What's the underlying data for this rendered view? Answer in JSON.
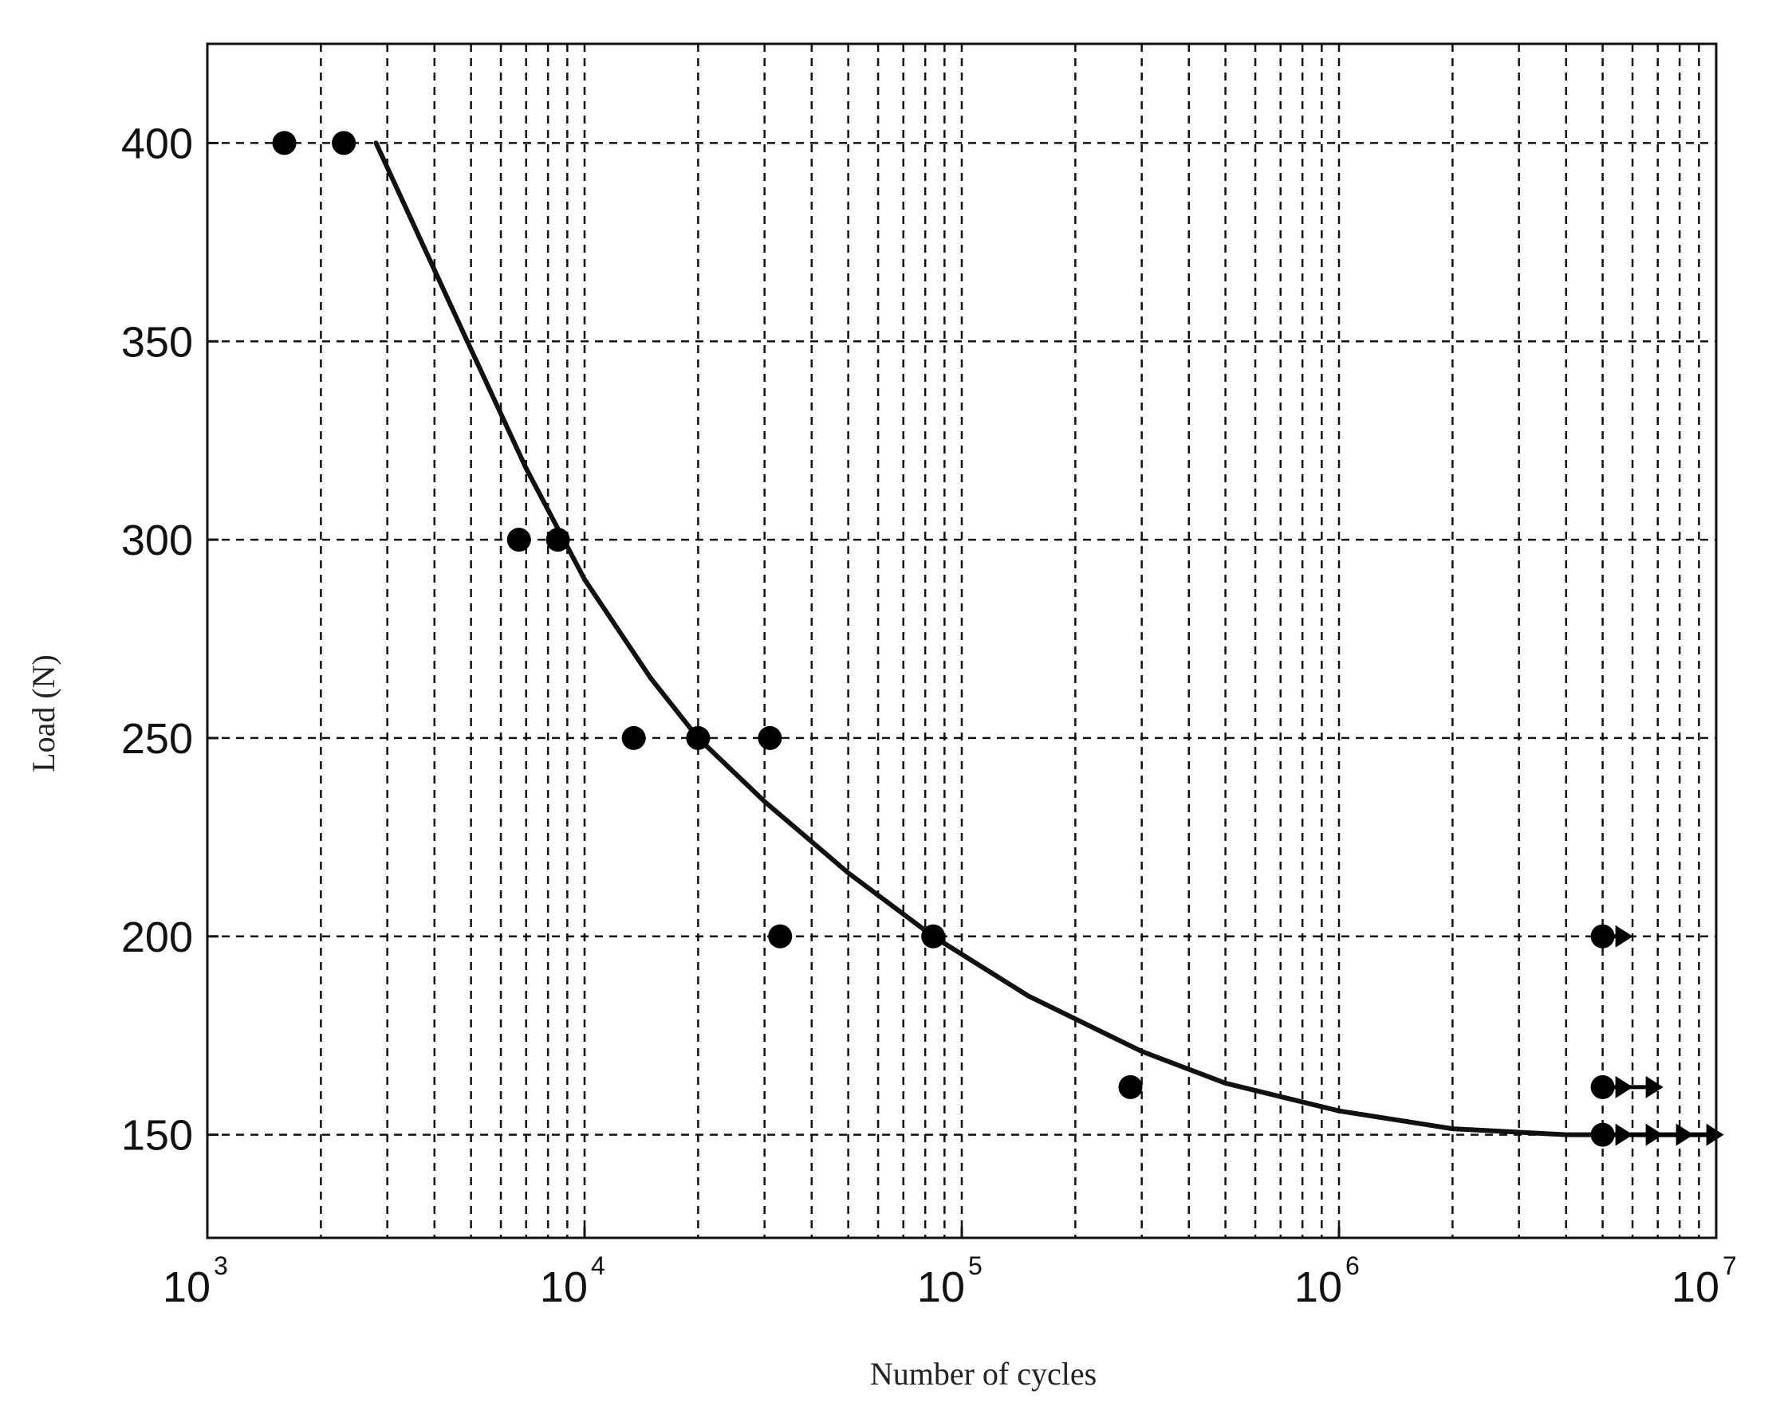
{
  "chart_data": {
    "type": "scatter",
    "xlabel": "Number of cycles",
    "ylabel": "Load (N)",
    "xscale": "log",
    "xlim": [
      1000,
      10000000
    ],
    "ylim": [
      124,
      425
    ],
    "grid": true,
    "x_ticks": [
      {
        "value": 1000,
        "base": "10",
        "exp": "3"
      },
      {
        "value": 10000,
        "base": "10",
        "exp": "4"
      },
      {
        "value": 100000,
        "base": "10",
        "exp": "5"
      },
      {
        "value": 1000000,
        "base": "10",
        "exp": "6"
      },
      {
        "value": 10000000,
        "base": "10",
        "exp": "7"
      }
    ],
    "y_ticks": [
      {
        "value": 150,
        "label": "150"
      },
      {
        "value": 200,
        "label": "200"
      },
      {
        "value": 250,
        "label": "250"
      },
      {
        "value": 300,
        "label": "300"
      },
      {
        "value": 350,
        "label": "350"
      },
      {
        "value": 400,
        "label": "400"
      }
    ],
    "series": [
      {
        "points": [
          {
            "x": 1600,
            "y": 400
          },
          {
            "x": 2300,
            "y": 400
          },
          {
            "x": 6700,
            "y": 300
          },
          {
            "x": 8500,
            "y": 300
          },
          {
            "x": 13500,
            "y": 250
          },
          {
            "x": 20000,
            "y": 250
          },
          {
            "x": 31000,
            "y": 250
          },
          {
            "x": 33000,
            "y": 200
          },
          {
            "x": 84000,
            "y": 200
          },
          {
            "x": 280000,
            "y": 162
          },
          {
            "x": 5000000,
            "y": 200
          },
          {
            "x": 5000000,
            "y": 162
          },
          {
            "x": 5000000,
            "y": 150
          }
        ]
      }
    ],
    "runouts": [
      {
        "x": 5000000,
        "y": 200,
        "arrows": 1
      },
      {
        "x": 5000000,
        "y": 162,
        "arrows": 2
      },
      {
        "x": 5000000,
        "y": 150,
        "arrows": 4
      }
    ],
    "fit_curve": {
      "points": [
        {
          "x": 2800,
          "y": 400
        },
        {
          "x": 4000,
          "y": 368
        },
        {
          "x": 5000,
          "y": 348
        },
        {
          "x": 7000,
          "y": 318
        },
        {
          "x": 10000,
          "y": 290
        },
        {
          "x": 15000,
          "y": 265
        },
        {
          "x": 20000,
          "y": 250
        },
        {
          "x": 30000,
          "y": 234
        },
        {
          "x": 50000,
          "y": 216
        },
        {
          "x": 84000,
          "y": 200
        },
        {
          "x": 150000,
          "y": 185
        },
        {
          "x": 300000,
          "y": 171
        },
        {
          "x": 500000,
          "y": 163
        },
        {
          "x": 1000000,
          "y": 156
        },
        {
          "x": 2000000,
          "y": 151.5
        },
        {
          "x": 4000000,
          "y": 150
        },
        {
          "x": 10000000,
          "y": 150
        }
      ]
    }
  }
}
